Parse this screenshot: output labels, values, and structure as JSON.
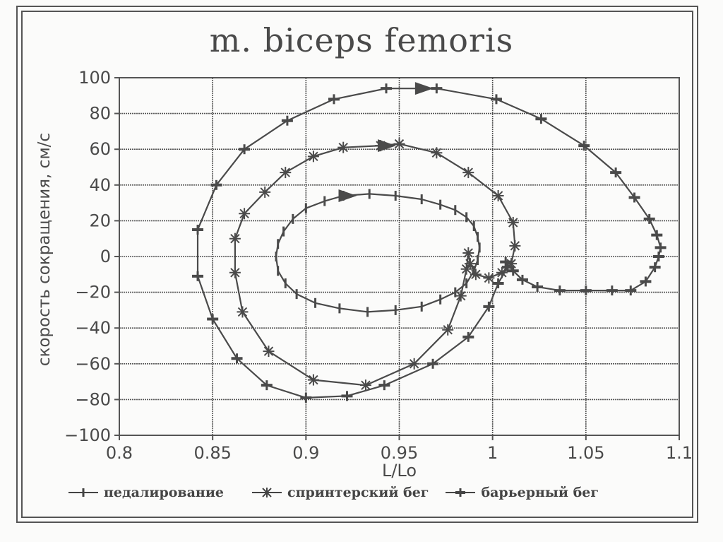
{
  "title": "m. biceps femoris",
  "chart_data": {
    "type": "line",
    "title": "m. biceps femoris",
    "xlabel": "L/Lo",
    "ylabel": "скорость сокращения, см/с",
    "xlim": [
      0.8,
      1.1
    ],
    "ylim": [
      -100,
      100
    ],
    "x_ticks": [
      "0.8",
      "0.85",
      "0.9",
      "0.95",
      "1",
      "1.05",
      "1.1"
    ],
    "y_ticks": [
      "100",
      "80",
      "60",
      "40",
      "20",
      "0",
      "-20",
      "-40",
      "-60",
      "-80",
      "-100"
    ],
    "grid": true,
    "legend_position": "bottom",
    "series": [
      {
        "name": "педалирование",
        "marker": "vertical-tick",
        "points": [
          [
            0.92,
            34
          ],
          [
            0.934,
            35
          ],
          [
            0.948,
            34
          ],
          [
            0.962,
            32
          ],
          [
            0.972,
            29
          ],
          [
            0.98,
            26
          ],
          [
            0.986,
            22
          ],
          [
            0.99,
            17
          ],
          [
            0.992,
            11
          ],
          [
            0.993,
            5
          ],
          [
            0.992,
            -2
          ],
          [
            0.99,
            -8
          ],
          [
            0.986,
            -15
          ],
          [
            0.98,
            -20
          ],
          [
            0.972,
            -24
          ],
          [
            0.962,
            -28
          ],
          [
            0.948,
            -30
          ],
          [
            0.933,
            -31
          ],
          [
            0.918,
            -29
          ],
          [
            0.905,
            -26
          ],
          [
            0.895,
            -21
          ],
          [
            0.889,
            -15
          ],
          [
            0.885,
            -8
          ],
          [
            0.884,
            0
          ],
          [
            0.885,
            7
          ],
          [
            0.888,
            14
          ],
          [
            0.893,
            21
          ],
          [
            0.9,
            27
          ],
          [
            0.91,
            31
          ],
          [
            0.92,
            34
          ]
        ]
      },
      {
        "name": "спринтерский бег",
        "marker": "asterisk",
        "points": [
          [
            0.94,
            62
          ],
          [
            0.95,
            63
          ],
          [
            0.97,
            58
          ],
          [
            0.987,
            47
          ],
          [
            1.003,
            34
          ],
          [
            1.011,
            19
          ],
          [
            1.012,
            6
          ],
          [
            1.01,
            -4
          ],
          [
            1.005,
            -9
          ],
          [
            0.998,
            -12
          ],
          [
            0.991,
            -10
          ],
          [
            0.988,
            -4
          ],
          [
            0.987,
            2
          ],
          [
            0.986,
            -7
          ],
          [
            0.983,
            -22
          ],
          [
            0.976,
            -41
          ],
          [
            0.958,
            -60
          ],
          [
            0.932,
            -72
          ],
          [
            0.904,
            -69
          ],
          [
            0.88,
            -53
          ],
          [
            0.866,
            -31
          ],
          [
            0.862,
            -9
          ],
          [
            0.862,
            10
          ],
          [
            0.867,
            24
          ],
          [
            0.878,
            36
          ],
          [
            0.889,
            47
          ],
          [
            0.904,
            56
          ],
          [
            0.92,
            61
          ],
          [
            0.94,
            62
          ]
        ]
      },
      {
        "name": "барьерный бег",
        "marker": "plus",
        "points": [
          [
            0.97,
            94
          ],
          [
            1.002,
            88
          ],
          [
            1.026,
            77
          ],
          [
            1.049,
            62
          ],
          [
            1.066,
            47
          ],
          [
            1.076,
            33
          ],
          [
            1.084,
            21
          ],
          [
            1.088,
            12
          ],
          [
            1.09,
            5
          ],
          [
            1.089,
            0
          ],
          [
            1.087,
            -6
          ],
          [
            1.082,
            -14
          ],
          [
            1.074,
            -19
          ],
          [
            1.064,
            -19
          ],
          [
            1.05,
            -19
          ],
          [
            1.036,
            -19
          ],
          [
            1.024,
            -17
          ],
          [
            1.016,
            -13
          ],
          [
            1.011,
            -8
          ],
          [
            1.007,
            -3
          ],
          [
            1.008,
            -6
          ],
          [
            1.003,
            -15
          ],
          [
            0.998,
            -28
          ],
          [
            0.987,
            -45
          ],
          [
            0.968,
            -60
          ],
          [
            0.942,
            -72
          ],
          [
            0.922,
            -78
          ],
          [
            0.9,
            -79
          ],
          [
            0.879,
            -72
          ],
          [
            0.863,
            -57
          ],
          [
            0.85,
            -35
          ],
          [
            0.842,
            -11
          ],
          [
            0.842,
            15
          ],
          [
            0.852,
            40
          ],
          [
            0.867,
            60
          ],
          [
            0.89,
            76
          ],
          [
            0.915,
            88
          ],
          [
            0.943,
            94
          ],
          [
            0.97,
            94
          ]
        ]
      }
    ],
    "annotations": [
      {
        "type": "direction-arrow",
        "series": "педалирование",
        "at": [
          0.922,
          34
        ]
      },
      {
        "type": "direction-arrow",
        "series": "спринтерский бег",
        "at": [
          0.943,
          62
        ]
      },
      {
        "type": "direction-arrow",
        "series": "барьерный бег",
        "at": [
          0.963,
          94
        ]
      }
    ]
  },
  "legend": {
    "items": [
      {
        "label": "педалирование"
      },
      {
        "label": "спринтерский бег"
      },
      {
        "label": "барьерный бег"
      }
    ]
  },
  "colors": {
    "ink": "#4a4a4a",
    "grid": "#555555",
    "background": "#fbfbfa"
  }
}
